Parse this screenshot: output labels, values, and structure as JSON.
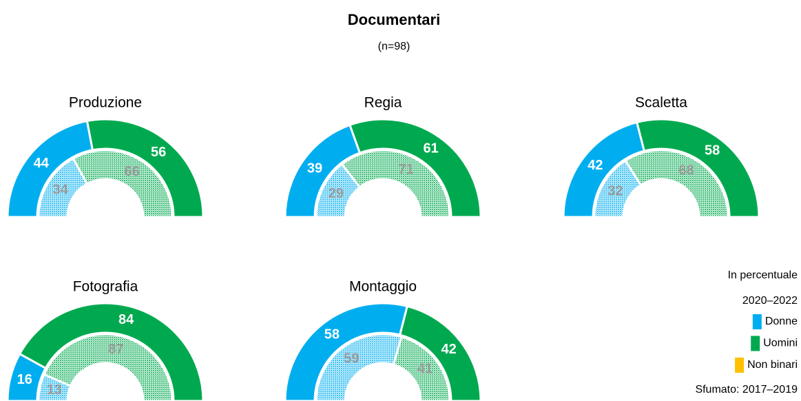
{
  "title": "Documentari",
  "subtitle": "(n=98)",
  "legend": {
    "unit": "In percentuale",
    "period": "2020–2022",
    "faded": "Sfumato: 2017–2019",
    "items": [
      {
        "name": "Donne",
        "color": "#00aeef"
      },
      {
        "name": "Uomini",
        "color": "#00a94f"
      },
      {
        "name": "Non binari",
        "color": "#ffc000"
      }
    ]
  },
  "chart_data": [
    {
      "type": "half-donut",
      "title": "Produzione",
      "values": [
        44,
        56,
        0
      ],
      "values_2017_2019": [
        34,
        66,
        0
      ]
    },
    {
      "type": "half-donut",
      "title": "Regia",
      "values": [
        39,
        61,
        0
      ],
      "values_2017_2019": [
        29,
        71,
        0
      ]
    },
    {
      "type": "half-donut",
      "title": "Scaletta",
      "values": [
        42,
        58,
        0
      ],
      "values_2017_2019": [
        32,
        68,
        0
      ]
    },
    {
      "type": "half-donut",
      "title": "Fotografia",
      "values": [
        16,
        84,
        0
      ],
      "values_2017_2019": [
        13,
        87,
        0
      ]
    },
    {
      "type": "half-donut",
      "title": "Montaggio",
      "values": [
        58,
        42,
        0
      ],
      "values_2017_2019": [
        59,
        41,
        0
      ]
    }
  ]
}
